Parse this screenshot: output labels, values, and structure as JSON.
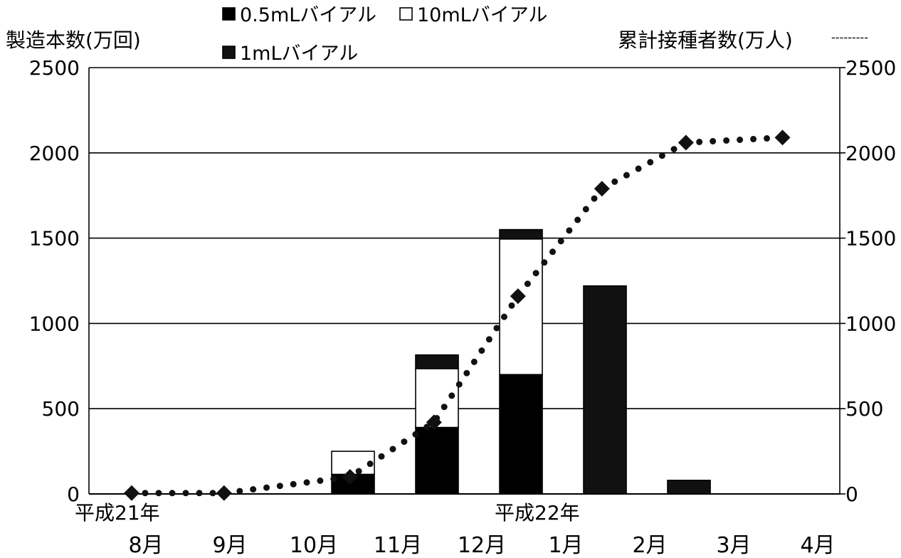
{
  "chart_data": {
    "type": "bar",
    "title": "",
    "ylabel_left": "製造本数(万回)",
    "ylabel_right": "累計接種者数(万人)",
    "ylim": [
      0,
      2500
    ],
    "yticks": [
      0,
      500,
      1000,
      1500,
      2000,
      2500
    ],
    "grid": true,
    "categories": [
      "8月",
      "9月",
      "10月",
      "11月",
      "12月",
      "1月",
      "2月",
      "3月",
      "4月"
    ],
    "year_labels": [
      {
        "text": "平成21年",
        "category_index": 0
      },
      {
        "text": "平成22年",
        "category_index": 5
      }
    ],
    "legend": {
      "placement": "top",
      "items": [
        {
          "text": "0.5mLバイアル",
          "series": "0.5mL"
        },
        {
          "text": "10mLバイアル",
          "series": "10mL"
        },
        {
          "text": "1mLバイアル",
          "series": "1mL"
        }
      ],
      "line_marker": "---------"
    },
    "bars": [
      {
        "category_index": 2,
        "segments": [
          {
            "series": "0.5mL",
            "value": 115
          },
          {
            "series": "10mL",
            "value": 135
          },
          {
            "series": "1mL",
            "value": 0
          }
        ]
      },
      {
        "category_index": 3,
        "segments": [
          {
            "series": "0.5mL",
            "value": 390
          },
          {
            "series": "10mL",
            "value": 345
          },
          {
            "series": "1mL",
            "value": 80
          }
        ]
      },
      {
        "category_index": 4,
        "segments": [
          {
            "series": "0.5mL",
            "value": 700
          },
          {
            "series": "10mL",
            "value": 795
          },
          {
            "series": "1mL",
            "value": 55
          }
        ]
      },
      {
        "category_index": 5,
        "segments": [
          {
            "series": "0.5mL",
            "value": 0
          },
          {
            "series": "10mL",
            "value": 0
          },
          {
            "series": "1mL",
            "value": 1220
          }
        ]
      },
      {
        "category_index": 6,
        "segments": [
          {
            "series": "0.5mL",
            "value": 0
          },
          {
            "series": "10mL",
            "value": 0
          },
          {
            "series": "1mL",
            "value": 80
          }
        ]
      }
    ],
    "cumulative_line": {
      "axis": "right",
      "style": "dotted",
      "points": [
        {
          "x": 0.0,
          "y": 5
        },
        {
          "x": 1.1,
          "y": 5
        },
        {
          "x": 2.6,
          "y": 100
        },
        {
          "x": 3.6,
          "y": 420
        },
        {
          "x": 4.6,
          "y": 1160
        },
        {
          "x": 5.6,
          "y": 1790
        },
        {
          "x": 6.6,
          "y": 2060
        },
        {
          "x": 7.75,
          "y": 2090
        }
      ]
    },
    "colors": {
      "0.5mL": "#000000",
      "10mL": "#ffffff",
      "1mL": "#111111",
      "line": "#111111"
    }
  }
}
